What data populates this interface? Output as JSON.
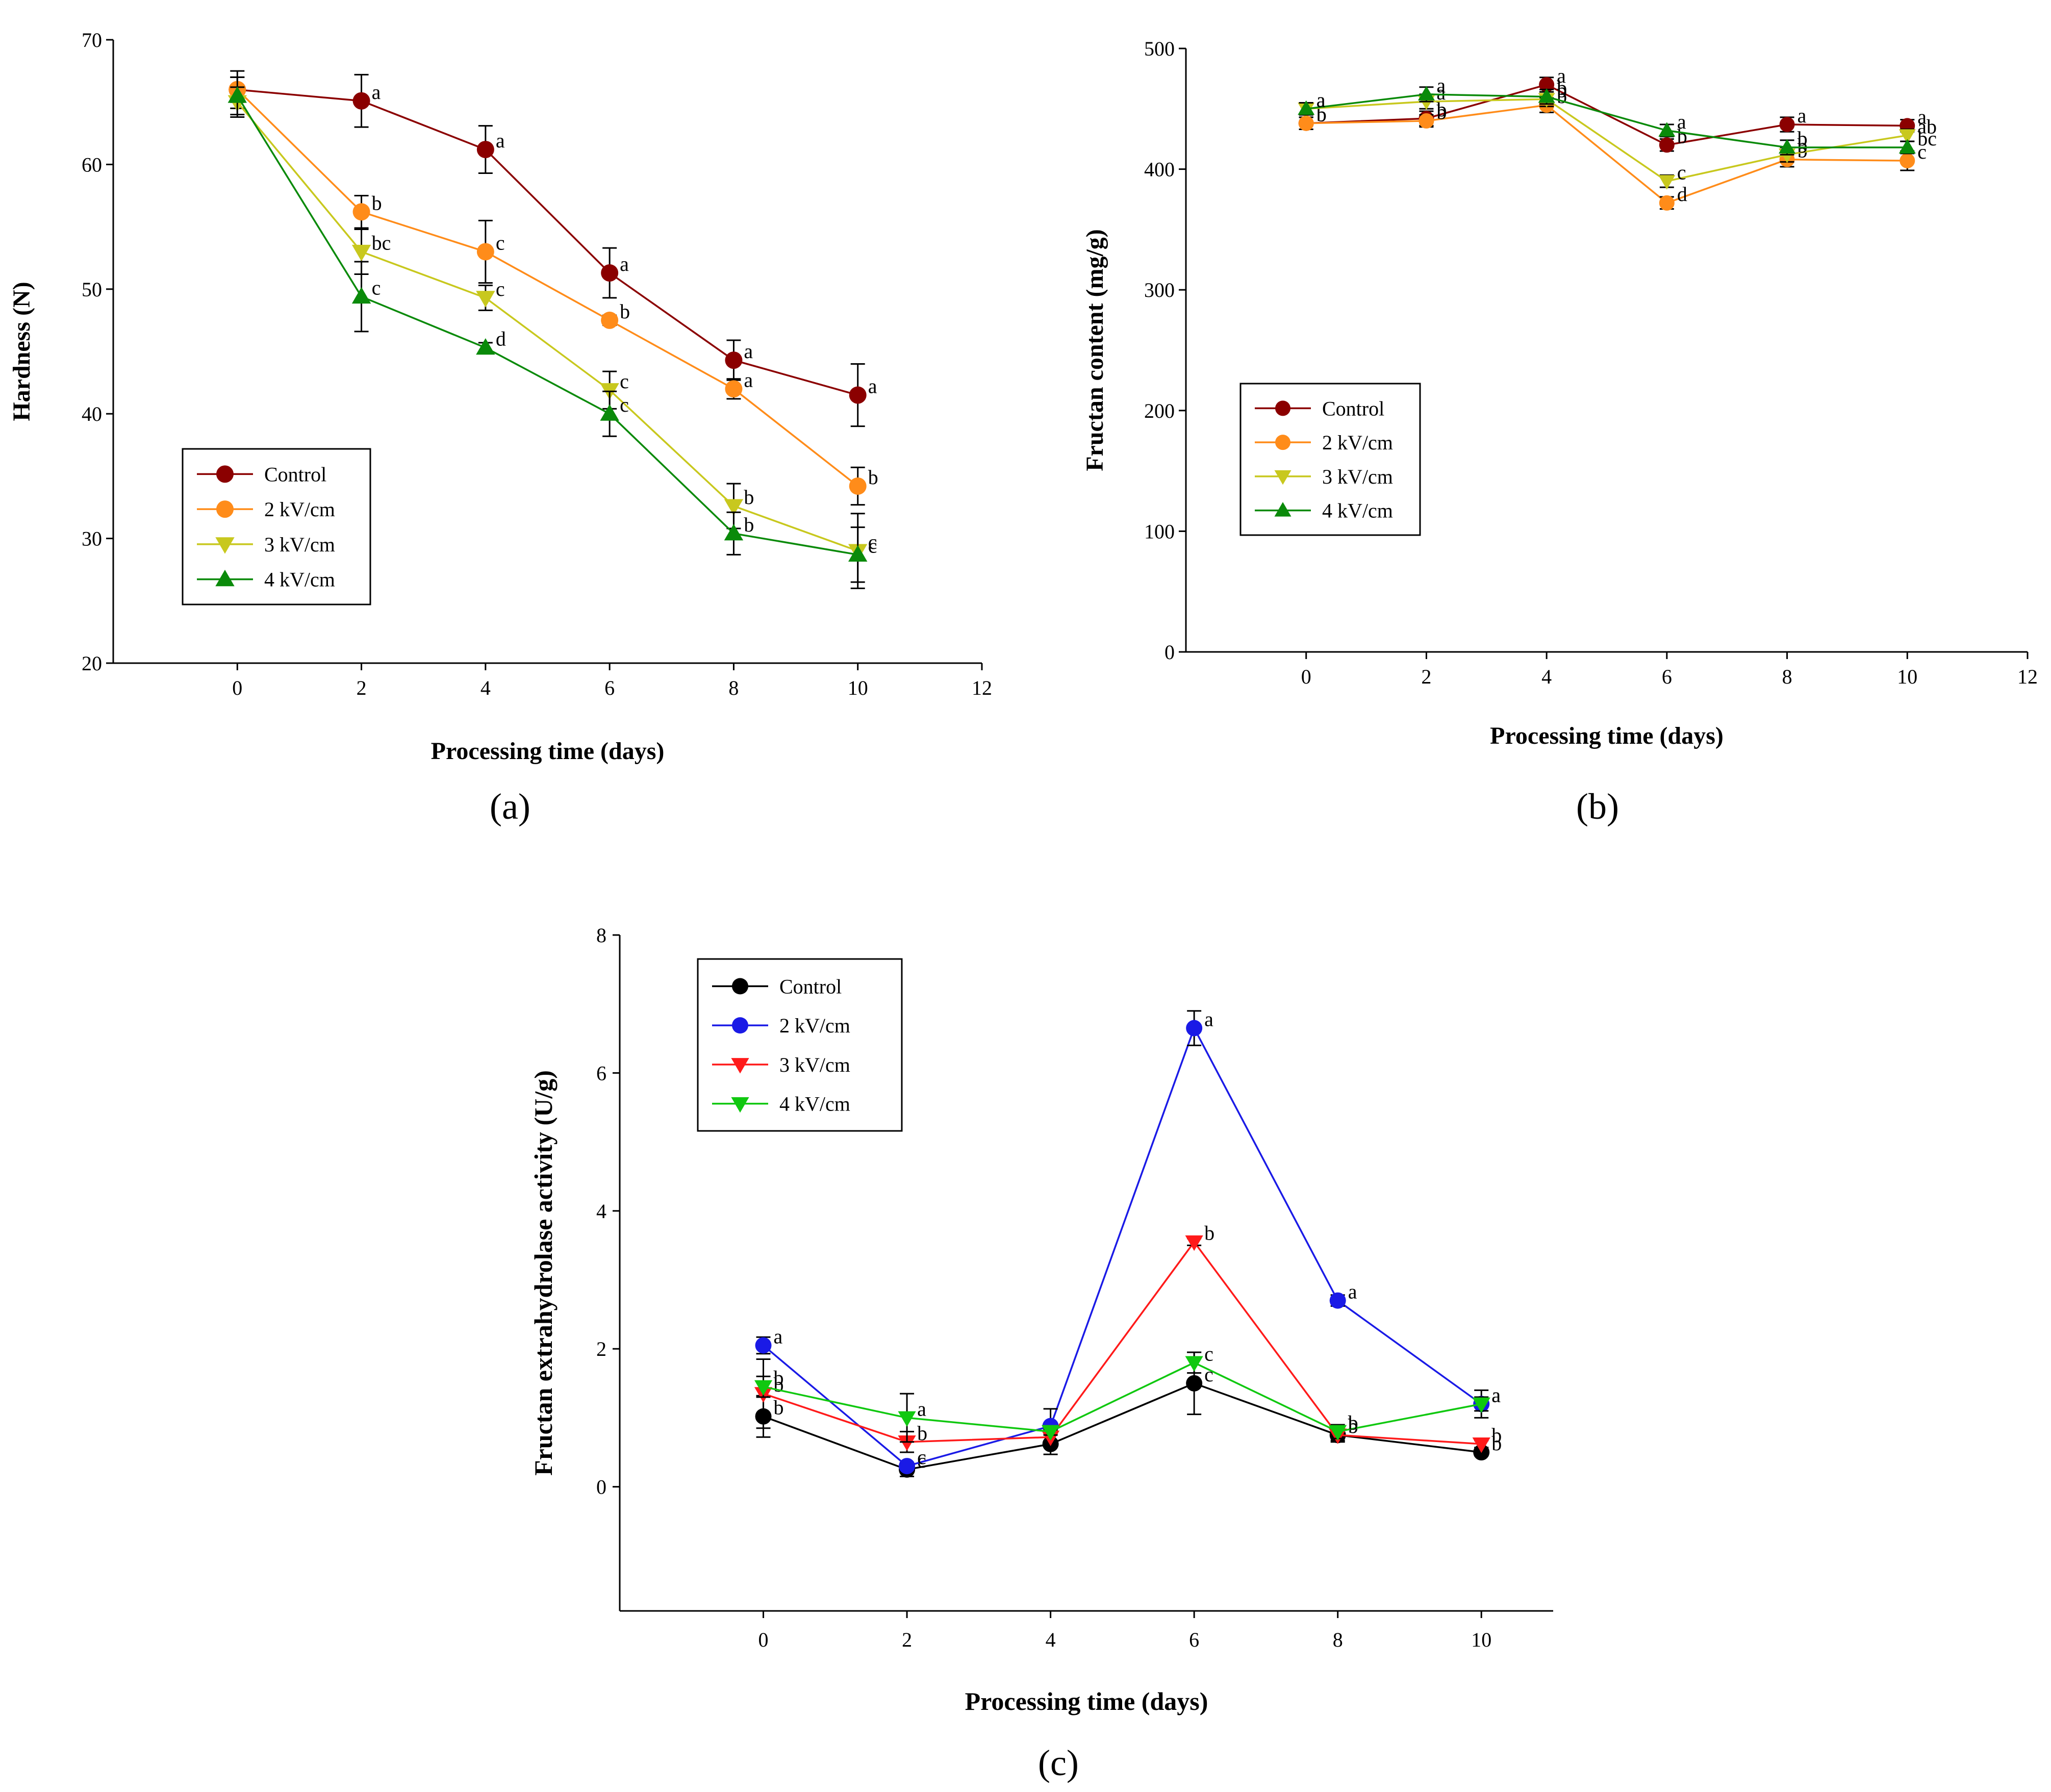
{
  "figure": {
    "panel_labels": [
      "(a)",
      "(b)",
      "(c)"
    ]
  },
  "chart_data": [
    {
      "type": "line",
      "panel": "(a)",
      "xlabel": "Processing time (days)",
      "ylabel": "Hardness (N)",
      "xlim": [
        -2,
        12
      ],
      "ylim": [
        20,
        70
      ],
      "xticks": [
        0,
        2,
        4,
        6,
        8,
        10,
        12
      ],
      "yticks": [
        20,
        30,
        40,
        50,
        60,
        70
      ],
      "x": [
        0,
        2,
        4,
        6,
        8,
        10
      ],
      "legend_position": "lower-left",
      "series": [
        {
          "name": "Control",
          "color": "#8b0000",
          "marker": "circle",
          "values": [
            66.0,
            65.1,
            61.2,
            51.3,
            44.3,
            41.5
          ],
          "errors": [
            1.5,
            2.1,
            1.9,
            2.0,
            1.6,
            2.5
          ],
          "letters": [
            "",
            "a",
            "a",
            "a",
            "a",
            "a"
          ]
        },
        {
          "name": "2 kV/cm",
          "color": "#ff8c1a",
          "marker": "circle",
          "values": [
            66.0,
            56.2,
            53.0,
            47.5,
            42.0,
            34.2
          ],
          "errors": [
            1.0,
            1.3,
            2.5,
            0.4,
            0.8,
            1.5
          ],
          "letters": [
            "",
            "b",
            "c",
            "b",
            "a",
            "b"
          ]
        },
        {
          "name": "3 kV/cm",
          "color": "#c8c81e",
          "marker": "triangle-down",
          "values": [
            65.0,
            53.0,
            49.3,
            41.9,
            32.6,
            29.0
          ],
          "errors": [
            1.2,
            1.8,
            1.0,
            1.5,
            1.8,
            3.0
          ],
          "letters": [
            "",
            "bc",
            "c",
            "c",
            "b",
            "c"
          ]
        },
        {
          "name": "4 kV/cm",
          "color": "#0a8a0a",
          "marker": "triangle-up",
          "values": [
            65.5,
            49.4,
            45.3,
            40.0,
            30.4,
            28.7
          ],
          "errors": [
            1.5,
            2.8,
            0.4,
            1.8,
            1.7,
            2.2
          ],
          "letters": [
            "",
            "c",
            "d",
            "c",
            "b",
            "c"
          ]
        }
      ]
    },
    {
      "type": "line",
      "panel": "(b)",
      "xlabel": "Processing time (days)",
      "ylabel": "Fructan content (mg/g)",
      "xlim": [
        -2,
        12
      ],
      "ylim": [
        0,
        500
      ],
      "xticks": [
        0,
        2,
        4,
        6,
        8,
        10,
        12
      ],
      "yticks": [
        0,
        100,
        200,
        300,
        400,
        500
      ],
      "x": [
        0,
        2,
        4,
        6,
        8,
        10
      ],
      "legend_position": "center-left",
      "series": [
        {
          "name": "Control",
          "color": "#8b0000",
          "marker": "circle",
          "values": [
            438,
            442,
            470,
            420,
            437,
            436
          ],
          "errors": [
            5,
            6,
            6,
            5,
            6,
            5
          ],
          "letters": [
            "b",
            "b",
            "a",
            "b",
            "a",
            "a"
          ]
        },
        {
          "name": "2 kV/cm",
          "color": "#ff8c1a",
          "marker": "circle",
          "values": [
            438,
            440,
            453,
            372,
            408,
            407
          ],
          "errors": [
            5,
            5,
            6,
            5,
            6,
            8
          ],
          "letters": [
            "b",
            "b",
            "b",
            "d",
            "b",
            "c"
          ]
        },
        {
          "name": "3 kV/cm",
          "color": "#c8c81e",
          "marker": "triangle-down",
          "values": [
            450,
            456,
            458,
            390,
            412,
            428
          ],
          "errors": [
            5,
            6,
            6,
            5,
            6,
            5
          ],
          "letters": [
            "a",
            "a",
            "b",
            "c",
            "b",
            "ab"
          ]
        },
        {
          "name": "4 kV/cm",
          "color": "#0a8a0a",
          "marker": "triangle-up",
          "values": [
            450,
            462,
            460,
            432,
            418,
            418
          ],
          "errors": [
            5,
            6,
            6,
            5,
            6,
            5
          ],
          "letters": [
            "a",
            "a",
            "b",
            "a",
            "b",
            "bc"
          ]
        }
      ]
    },
    {
      "type": "line",
      "panel": "(c)",
      "xlabel": "Processing time (days)",
      "ylabel": "Fructan extrahydrolase activity (U/g)",
      "xlim": [
        -2,
        11
      ],
      "ylim": [
        -1.8,
        8
      ],
      "xticks": [
        0,
        2,
        4,
        6,
        8,
        10
      ],
      "yticks": [
        0,
        2,
        4,
        6,
        8
      ],
      "x": [
        0,
        2,
        4,
        6,
        8,
        10
      ],
      "legend_position": "top-left",
      "series": [
        {
          "name": "Control",
          "color": "#000000",
          "marker": "circle",
          "values": [
            1.02,
            0.25,
            0.62,
            1.5,
            0.75,
            0.5
          ],
          "errors": [
            0.3,
            0.1,
            0.15,
            0.45,
            0.1,
            0.05
          ],
          "letters": [
            "b",
            "c",
            "",
            "c",
            "b",
            "b"
          ]
        },
        {
          "name": "2 kV/cm",
          "color": "#1a1ae6",
          "marker": "circle",
          "values": [
            2.05,
            0.3,
            0.88,
            6.65,
            2.7,
            1.2
          ],
          "errors": [
            0.12,
            0.05,
            0.25,
            0.25,
            0.08,
            0.2
          ],
          "letters": [
            "a",
            "c",
            "",
            "a",
            "a",
            "a"
          ]
        },
        {
          "name": "3 kV/cm",
          "color": "#ff1a1a",
          "marker": "triangle-down",
          "values": [
            1.35,
            0.65,
            0.72,
            3.55,
            0.75,
            0.62
          ],
          "errors": [
            0.5,
            0.15,
            0.1,
            0.05,
            0.08,
            0.05
          ],
          "letters": [
            "b",
            "b",
            "",
            "b",
            "b",
            "b"
          ]
        },
        {
          "name": "4 kV/cm",
          "color": "#10c810",
          "marker": "triangle-down",
          "values": [
            1.45,
            1.0,
            0.8,
            1.8,
            0.8,
            1.2
          ],
          "errors": [
            0.15,
            0.35,
            0.05,
            0.15,
            0.1,
            0.1
          ],
          "letters": [
            "b",
            "a",
            "",
            "c",
            "b",
            "a"
          ]
        }
      ]
    }
  ]
}
